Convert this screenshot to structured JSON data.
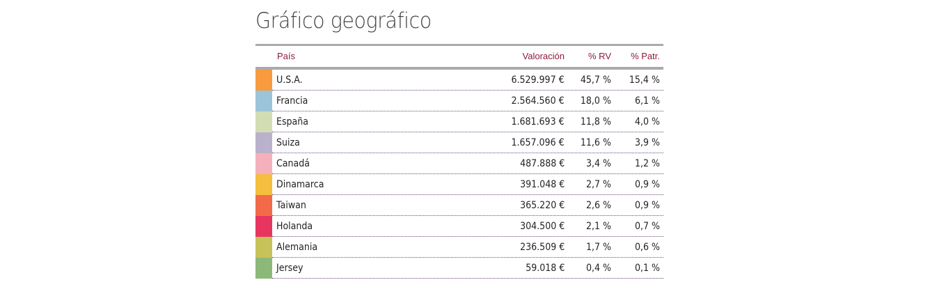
{
  "title": "Gráfico geográfico",
  "columns": {
    "country": "País",
    "value": "Valoración",
    "rv": "% RV",
    "patr": "% Patr."
  },
  "rows": [
    {
      "country": "U.S.A.",
      "value": "6.529.997 €",
      "rv": "45,7 %",
      "patr": "15,4 %",
      "color": "#f89a40"
    },
    {
      "country": "Francia",
      "value": "2.564.560 €",
      "rv": "18,0 %",
      "patr": "6,1 %",
      "color": "#9cc4d8"
    },
    {
      "country": "España",
      "value": "1.681.693 €",
      "rv": "11,8 %",
      "patr": "4,0 %",
      "color": "#d3ddb4"
    },
    {
      "country": "Suiza",
      "value": "1.657.096 €",
      "rv": "11,6 %",
      "patr": "3,9 %",
      "color": "#bab2cc"
    },
    {
      "country": "Canadá",
      "value": "487.888 €",
      "rv": "3,4 %",
      "patr": "1,2 %",
      "color": "#f5b1bb"
    },
    {
      "country": "Dinamarca",
      "value": "391.048 €",
      "rv": "2,7 %",
      "patr": "0,9 %",
      "color": "#f4be3e"
    },
    {
      "country": "Taiwan",
      "value": "365.220 €",
      "rv": "2,6 %",
      "patr": "0,9 %",
      "color": "#f26a4a"
    },
    {
      "country": "Holanda",
      "value": "304.500 €",
      "rv": "2,1 %",
      "patr": "0,7 %",
      "color": "#e83560"
    },
    {
      "country": "Alemania",
      "value": "236.509 €",
      "rv": "1,7 %",
      "patr": "0,6 %",
      "color": "#c8c25a"
    },
    {
      "country": "Jersey",
      "value": "59.018 €",
      "rv": "0,4 %",
      "patr": "0,1 %",
      "color": "#8cb97a"
    }
  ]
}
